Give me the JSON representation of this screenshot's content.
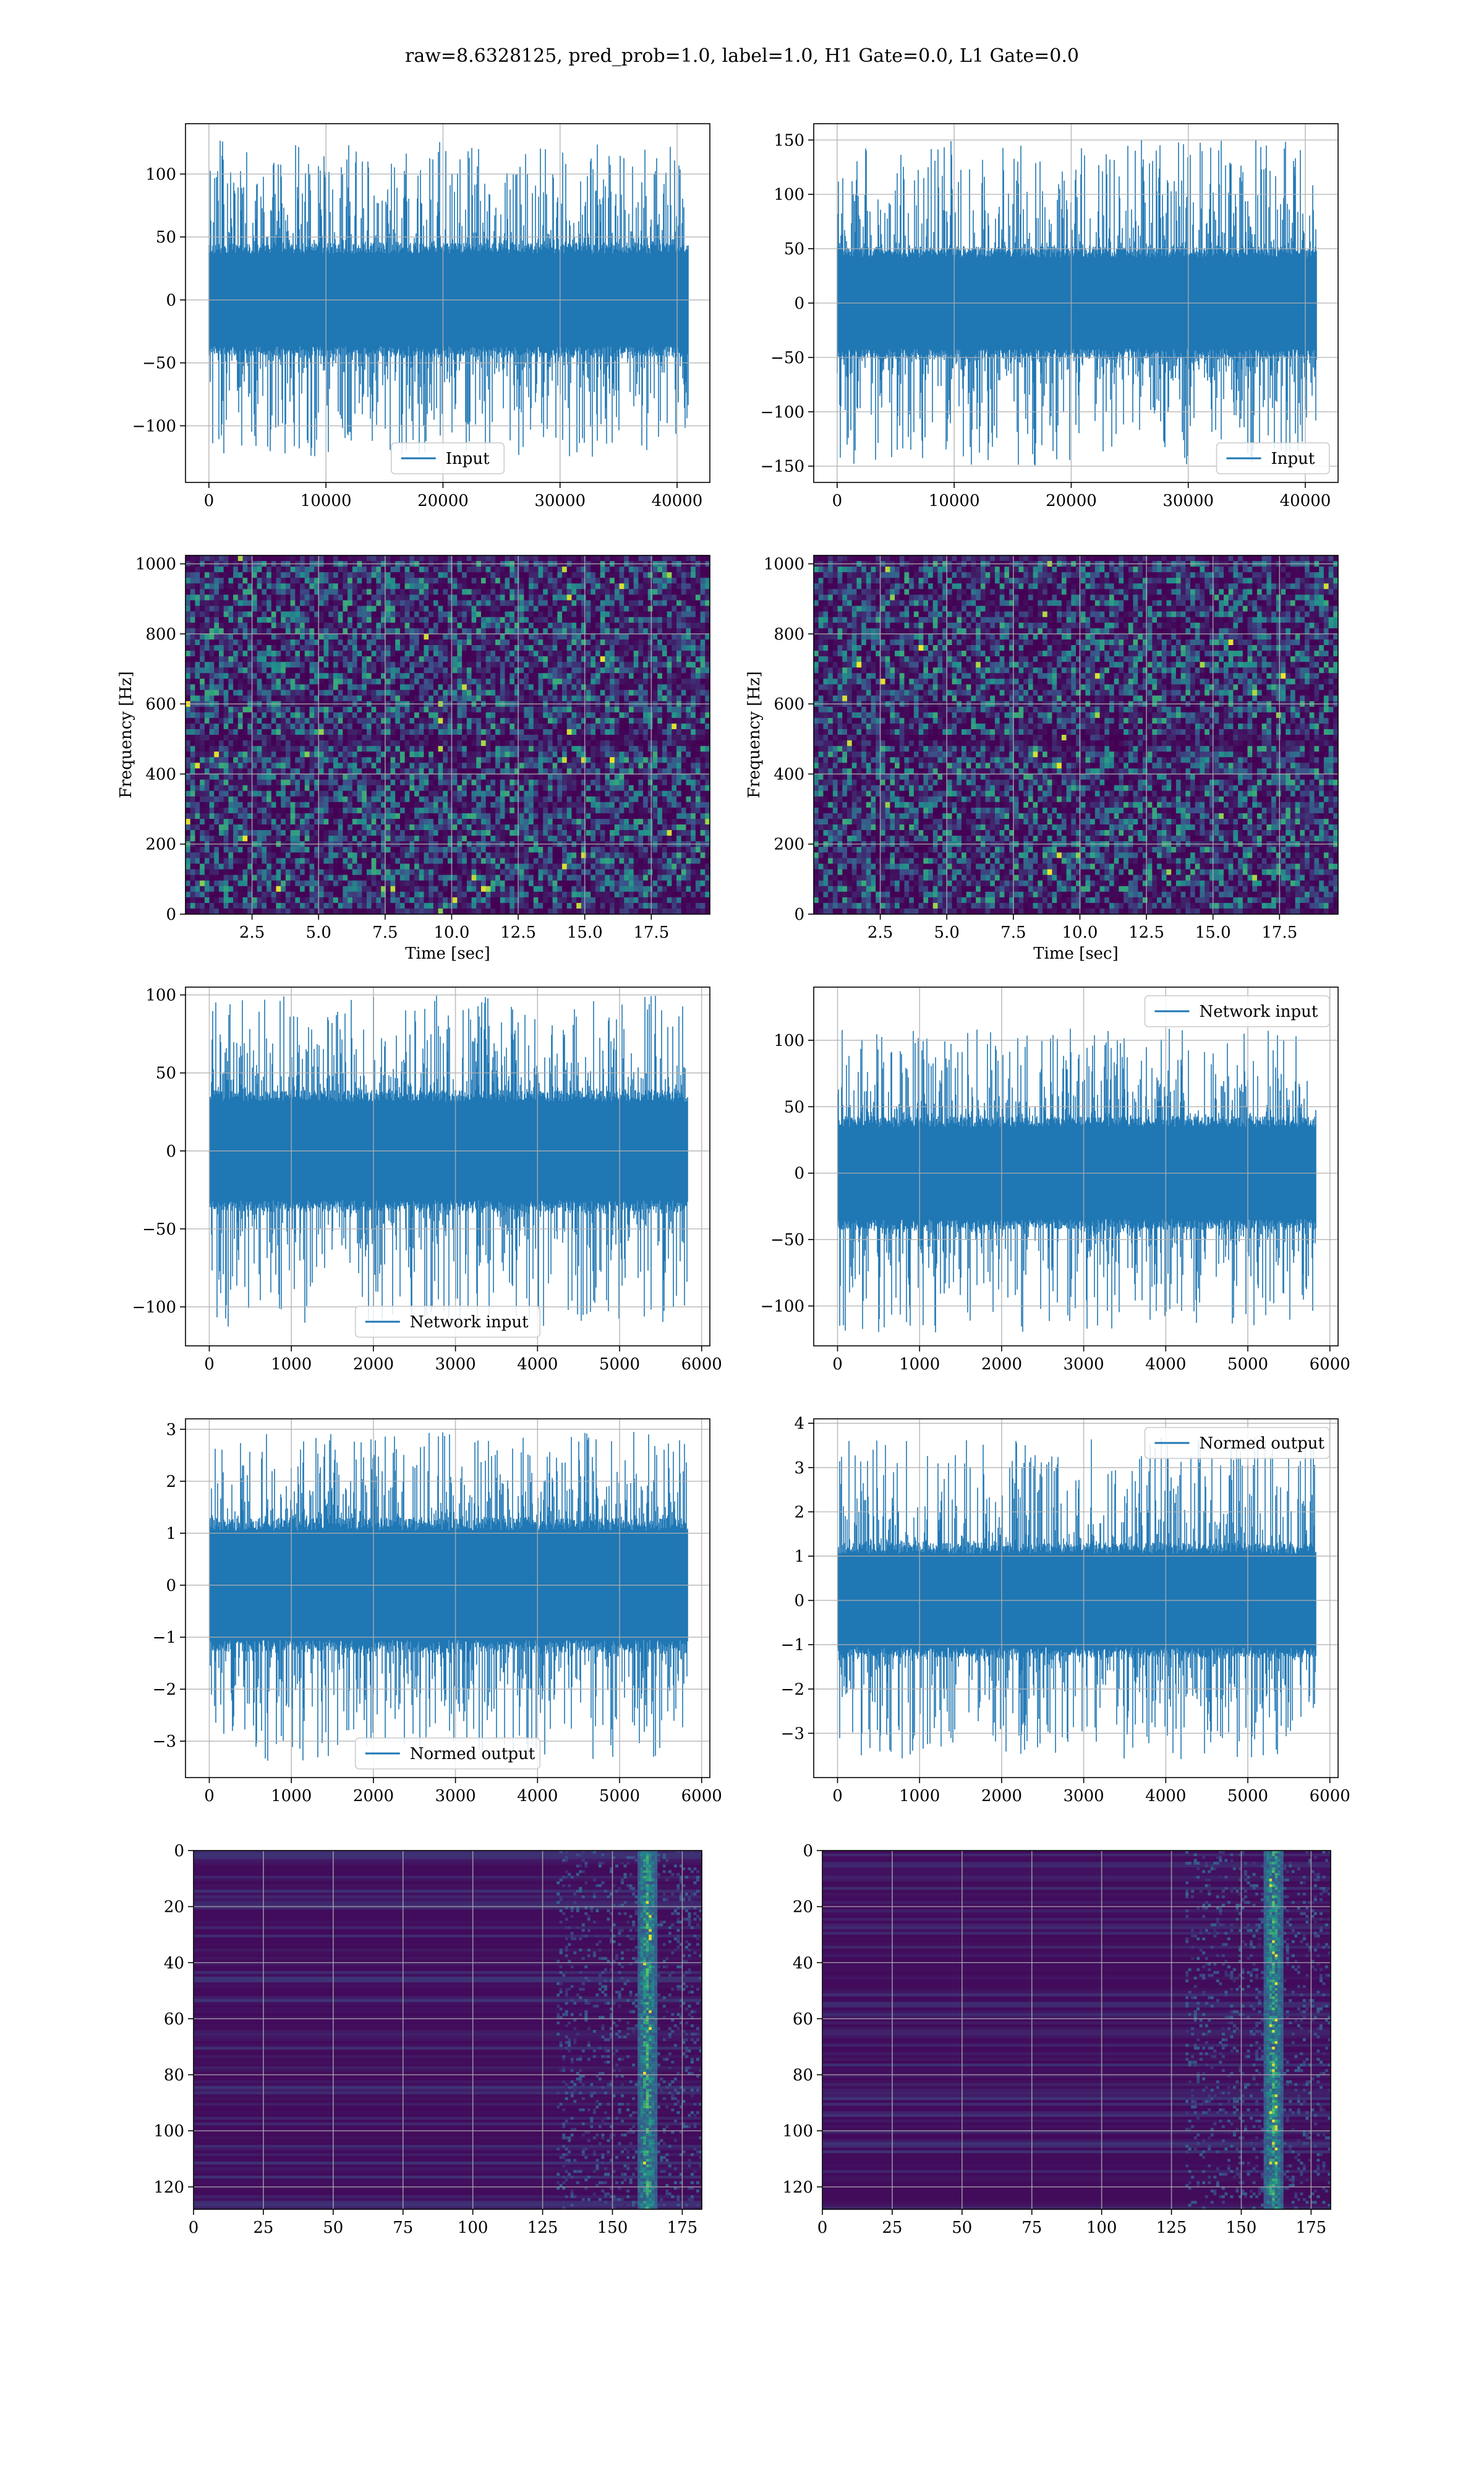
{
  "figure": {
    "title": "raw=8.6328125, pred_prob=1.0, label=1.0, H1 Gate=0.0, L1 Gate=0.0",
    "colors": {
      "series": "#1f77b4",
      "grid": "#b0b0b0",
      "spine": "#000000",
      "heat_low": "#440154",
      "heat_mid": "#21918c",
      "heat_high": "#fde725"
    }
  },
  "chart_data": [
    {
      "id": "input-h1",
      "type": "line",
      "legend": "Input",
      "legend_loc": "lower-center",
      "xlim": [
        -2000,
        42800
      ],
      "ylim": [
        -145,
        140
      ],
      "xticks": [
        0,
        10000,
        20000,
        30000,
        40000
      ],
      "xtick_labels": [
        "0",
        "10000",
        "20000",
        "30000",
        "40000"
      ],
      "yticks": [
        -100,
        -50,
        0,
        50,
        100
      ],
      "ytick_labels": [
        "−100",
        "−50",
        "0",
        "50",
        "100"
      ],
      "n_points": 40960,
      "band": [
        -35,
        35
      ],
      "range": [
        -125,
        127
      ],
      "grid": true
    },
    {
      "id": "input-l1",
      "type": "line",
      "legend": "Input",
      "legend_loc": "lower-right",
      "xlim": [
        -2000,
        42800
      ],
      "ylim": [
        -165,
        165
      ],
      "xticks": [
        0,
        10000,
        20000,
        30000,
        40000
      ],
      "xtick_labels": [
        "0",
        "10000",
        "20000",
        "30000",
        "40000"
      ],
      "yticks": [
        -150,
        -100,
        -50,
        0,
        50,
        100,
        150
      ],
      "ytick_labels": [
        "−150",
        "−100",
        "−50",
        "0",
        "50",
        "100",
        "150"
      ],
      "n_points": 40960,
      "band": [
        -40,
        40
      ],
      "range": [
        -150,
        150
      ],
      "grid": true
    },
    {
      "id": "spec-h1",
      "type": "heatmap",
      "xlabel": "Time [sec]",
      "ylabel": "Frequency [Hz]",
      "xlim": [
        0,
        19.7
      ],
      "ylim": [
        0,
        1024
      ],
      "xticks": [
        2.5,
        5.0,
        7.5,
        10.0,
        12.5,
        15.0,
        17.5
      ],
      "xtick_labels": [
        "2.5",
        "5.0",
        "7.5",
        "10.0",
        "12.5",
        "15.0",
        "17.5"
      ],
      "yticks": [
        0,
        200,
        400,
        600,
        800,
        1000
      ],
      "ytick_labels": [
        "0",
        "200",
        "400",
        "600",
        "800",
        "1000"
      ],
      "grid": true
    },
    {
      "id": "spec-l1",
      "type": "heatmap",
      "xlabel": "Time [sec]",
      "ylabel": "Frequency [Hz]",
      "xlim": [
        0,
        19.7
      ],
      "ylim": [
        0,
        1024
      ],
      "xticks": [
        2.5,
        5.0,
        7.5,
        10.0,
        12.5,
        15.0,
        17.5
      ],
      "xtick_labels": [
        "2.5",
        "5.0",
        "7.5",
        "10.0",
        "12.5",
        "15.0",
        "17.5"
      ],
      "yticks": [
        0,
        200,
        400,
        600,
        800,
        1000
      ],
      "ytick_labels": [
        "0",
        "200",
        "400",
        "600",
        "800",
        "1000"
      ],
      "grid": true
    },
    {
      "id": "net-h1",
      "type": "line",
      "legend": "Network input",
      "legend_loc": "lower-center",
      "xlim": [
        -290,
        6100
      ],
      "ylim": [
        -125,
        105
      ],
      "xticks": [
        0,
        1000,
        2000,
        3000,
        4000,
        5000,
        6000
      ],
      "xtick_labels": [
        "0",
        "1000",
        "2000",
        "3000",
        "4000",
        "5000",
        "6000"
      ],
      "yticks": [
        -100,
        -50,
        0,
        50,
        100
      ],
      "ytick_labels": [
        "−100",
        "−50",
        "0",
        "50",
        "100"
      ],
      "n_points": 5830,
      "band": [
        -30,
        30
      ],
      "range": [
        -113,
        100
      ],
      "grid": true
    },
    {
      "id": "net-l1",
      "type": "line",
      "legend": "Network input",
      "legend_loc": "upper-right",
      "xlim": [
        -290,
        6100
      ],
      "ylim": [
        -130,
        140
      ],
      "xticks": [
        0,
        1000,
        2000,
        3000,
        4000,
        5000,
        6000
      ],
      "xtick_labels": [
        "0",
        "1000",
        "2000",
        "3000",
        "4000",
        "5000",
        "6000"
      ],
      "yticks": [
        -100,
        -50,
        0,
        50,
        100
      ],
      "ytick_labels": [
        "−100",
        "−50",
        "0",
        "50",
        "100"
      ],
      "n_points": 5830,
      "band": [
        -33,
        33
      ],
      "range": [
        -120,
        110
      ],
      "grid": true
    },
    {
      "id": "out-h1",
      "type": "line",
      "legend": "Normed output",
      "legend_loc": "lower-center",
      "xlim": [
        -290,
        6100
      ],
      "ylim": [
        -3.7,
        3.2
      ],
      "xticks": [
        0,
        1000,
        2000,
        3000,
        4000,
        5000,
        6000
      ],
      "xtick_labels": [
        "0",
        "1000",
        "2000",
        "3000",
        "4000",
        "5000",
        "6000"
      ],
      "yticks": [
        -3,
        -2,
        -1,
        0,
        1,
        2,
        3
      ],
      "ytick_labels": [
        "−3",
        "−2",
        "−1",
        "0",
        "1",
        "2",
        "3"
      ],
      "n_points": 5830,
      "band": [
        -1.0,
        1.0
      ],
      "range": [
        -3.4,
        2.95
      ],
      "grid": true
    },
    {
      "id": "out-l1",
      "type": "line",
      "legend": "Normed output",
      "legend_loc": "upper-right",
      "xlim": [
        -290,
        6100
      ],
      "ylim": [
        -4.0,
        4.1
      ],
      "xticks": [
        0,
        1000,
        2000,
        3000,
        4000,
        5000,
        6000
      ],
      "xtick_labels": [
        "0",
        "1000",
        "2000",
        "3000",
        "4000",
        "5000",
        "6000"
      ],
      "yticks": [
        -3,
        -2,
        -1,
        0,
        1,
        2,
        3,
        4
      ],
      "ytick_labels": [
        "−3",
        "−2",
        "−1",
        "0",
        "1",
        "2",
        "3",
        "4"
      ],
      "n_points": 5830,
      "band": [
        -1.0,
        1.0
      ],
      "range": [
        -3.6,
        3.7
      ],
      "grid": true
    },
    {
      "id": "feat-h1",
      "type": "heatmap",
      "origin": "upper",
      "xlim": [
        0,
        182
      ],
      "ylim": [
        128,
        0
      ],
      "xticks": [
        0,
        25,
        50,
        75,
        100,
        125,
        150,
        175
      ],
      "xtick_labels": [
        "0",
        "25",
        "50",
        "75",
        "100",
        "125",
        "150",
        "175"
      ],
      "yticks": [
        0,
        20,
        40,
        60,
        80,
        100,
        120
      ],
      "ytick_labels": [
        "0",
        "20",
        "40",
        "60",
        "80",
        "100",
        "120"
      ],
      "hot_column": 162,
      "grid": true
    },
    {
      "id": "feat-l1",
      "type": "heatmap",
      "origin": "upper",
      "xlim": [
        0,
        182
      ],
      "ylim": [
        128,
        0
      ],
      "xticks": [
        0,
        25,
        50,
        75,
        100,
        125,
        150,
        175
      ],
      "xtick_labels": [
        "0",
        "25",
        "50",
        "75",
        "100",
        "125",
        "150",
        "175"
      ],
      "yticks": [
        0,
        20,
        40,
        60,
        80,
        100,
        120
      ],
      "ytick_labels": [
        "0",
        "20",
        "40",
        "60",
        "80",
        "100",
        "120"
      ],
      "hot_column": 161,
      "grid": true
    }
  ]
}
